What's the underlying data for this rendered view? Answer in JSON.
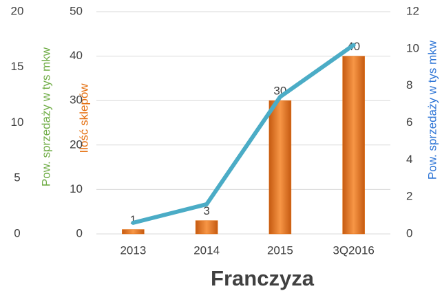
{
  "chart_data": {
    "type": "bar",
    "title": "Franczyza",
    "categories": [
      "2013",
      "2014",
      "2015",
      "3Q2016"
    ],
    "series": [
      {
        "name": "Ilość sklepów",
        "type": "bar",
        "color": "#e46c0a",
        "values": [
          1,
          3,
          30,
          40
        ]
      },
      {
        "name": "Pow. sprzedaży w tys mkw",
        "type": "line",
        "color": "#4bacc6",
        "axis": "y2",
        "values": [
          0.6,
          1.6,
          7.4,
          10.2
        ]
      }
    ],
    "ylabel": "Ilość sklepów",
    "ylim": [
      0,
      50
    ],
    "yticks": [
      0,
      10,
      20,
      30,
      40,
      50
    ],
    "y2label": "Pow. sprzedaży w tys mkw",
    "y2lim": [
      0,
      12
    ],
    "y2ticks": [
      0,
      2,
      4,
      6,
      8,
      10,
      12
    ],
    "y3label": "Pow. sprzedaży w tys mkw",
    "y3lim": [
      0,
      20
    ],
    "y3ticks": [
      0,
      5,
      10,
      15,
      20
    ],
    "grid": true
  }
}
